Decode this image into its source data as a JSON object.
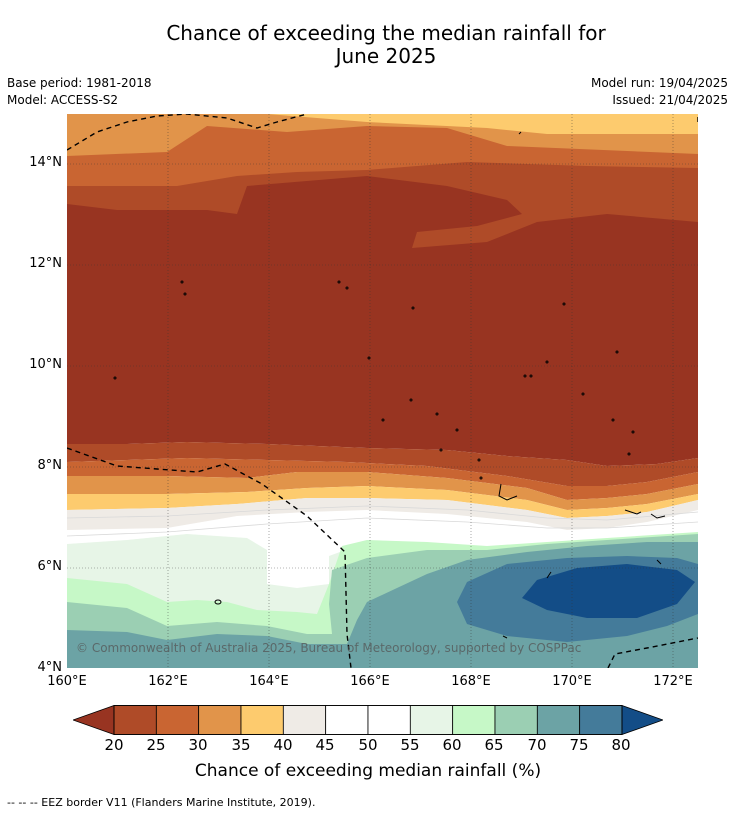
{
  "title_line1": "Chance of exceeding the median rainfall for",
  "title_line2": "June 2025",
  "base_period": "Base period: 1981-2018",
  "model": "Model: ACCESS-S2",
  "model_run": "Model run: 19/04/2025",
  "issued": "Issued: 21/04/2025",
  "map": {
    "lat_labels": [
      "14°N",
      "12°N",
      "10°N",
      "8°N",
      "6°N",
      "4°N"
    ],
    "lon_labels": [
      "160°E",
      "162°E",
      "164°E",
      "166°E",
      "168°E",
      "170°E",
      "172°E"
    ],
    "copyright": "© Commonwealth of Australia 2025, Bureau of Meteorology, supported by COSPPac"
  },
  "colorbar": {
    "ticks": [
      "20",
      "25",
      "30",
      "35",
      "40",
      "45",
      "50",
      "55",
      "60",
      "65",
      "70",
      "75",
      "80"
    ],
    "colors": [
      "#983421",
      "#af4b28",
      "#c96532",
      "#e1944a",
      "#fdcb6e",
      "#efebe6",
      "#ffffff",
      "#ffffff",
      "#e7f5e7",
      "#c6f8c7",
      "#9bcfb3",
      "#6ca3a5",
      "#447b9a",
      "#134d87"
    ],
    "label": "Chance of exceeding median rainfall (%)"
  },
  "footer": "--  --  -- EEZ border V11 (Flanders Marine Institute, 2019)."
}
